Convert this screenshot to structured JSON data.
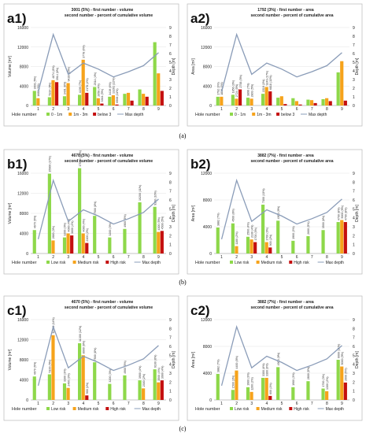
{
  "captions": [
    "(a)",
    "(b)",
    "(c)"
  ],
  "legend_entries": {
    "a": [
      {
        "label": "0 - 1m",
        "kind": "bar",
        "color": "#8ed84a"
      },
      {
        "label": "1m - 3m",
        "kind": "bar",
        "color": "#f6a31b"
      },
      {
        "label": "below 3",
        "kind": "bar",
        "color": "#c40f0f"
      },
      {
        "label": "Max depth",
        "kind": "line",
        "color": "#8a9cb8"
      }
    ],
    "risk": [
      {
        "label": "Low risk",
        "kind": "bar",
        "color": "#8ed84a"
      },
      {
        "label": "Medium risk",
        "kind": "bar",
        "color": "#f6a31b"
      },
      {
        "label": "High risk",
        "kind": "bar",
        "color": "#c40f0f"
      },
      {
        "label": "Max depth",
        "kind": "line",
        "color": "#8a9cb8"
      }
    ]
  },
  "chart_data": [
    {
      "panel": "a1)",
      "type": "bar",
      "legend_key": "a",
      "header_lines": [
        "3001 (5%) - first number - volume",
        "second number - percent of cumulative volume"
      ],
      "xlabel": "Hole number",
      "ylabel": "Volume [m³]",
      "y2label": "Depth [m]",
      "ylim": [
        0,
        16000
      ],
      "yticks": [
        0,
        4000,
        8000,
        12000,
        16000
      ],
      "y2lim": [
        0,
        9
      ],
      "y2ticks": [
        0,
        1,
        2,
        3,
        4,
        5,
        6,
        7,
        8,
        9
      ],
      "categories": [
        "1",
        "2",
        "3",
        "4",
        "5",
        "6",
        "7",
        "8",
        "9"
      ],
      "series": [
        {
          "name": "0 - 1m",
          "color": "#8ed84a",
          "values": [
            3001,
            1700,
            1900,
            2200,
            3800,
            1800,
            2400,
            3300,
            13000
          ]
        },
        {
          "name": "1m - 3m",
          "color": "#f6a31b",
          "values": [
            1500,
            5200,
            4600,
            9400,
            1500,
            2100,
            2600,
            2400,
            6600
          ]
        },
        {
          "name": "below 3",
          "color": "#c40f0f",
          "values": [
            0,
            4800,
            0,
            2600,
            400,
            200,
            1000,
            1800,
            3000
          ]
        }
      ],
      "line": {
        "name": "Max depth",
        "color": "#8a9cb8",
        "values": [
          1.6,
          8.2,
          3.6,
          4.9,
          4.2,
          3.3,
          3.9,
          4.6,
          6.1
        ]
      },
      "data_labels": [
        "3001 (5%)",
        "1688 (3%)",
        "5314 (9%)",
        "4874 (8%)",
        "3914 (6%)",
        "3401 (6%)",
        "9428 (16%)",
        "4199 (7%)",
        "3778 (6%)",
        "2178 (4%)",
        "2514 (4%)",
        "2658 (4%)",
        "3364 (5%)",
        "3419 (6%)",
        "13261 (22%)",
        "6508 (11%)"
      ]
    },
    {
      "panel": "a2)",
      "type": "bar",
      "legend_key": "a",
      "header_lines": [
        "1792 (3%) - first number - area",
        "second number - percent of cumulative area"
      ],
      "xlabel": "Hole number",
      "ylabel": "Area [m²]",
      "y2label": "Depth [m]",
      "ylim": [
        0,
        16000
      ],
      "yticks": [
        0,
        4000,
        8000,
        12000,
        16000
      ],
      "y2lim": [
        0,
        9
      ],
      "y2ticks": [
        0,
        1,
        2,
        3,
        4,
        5,
        6,
        7,
        8,
        9
      ],
      "categories": [
        "1",
        "2",
        "3",
        "4",
        "5",
        "6",
        "7",
        "8",
        "9"
      ],
      "series": [
        {
          "name": "0 - 1m",
          "color": "#8ed84a",
          "values": [
            1792,
            2200,
            1600,
            2400,
            1600,
            1500,
            1200,
            1300,
            6800
          ]
        },
        {
          "name": "1m - 3m",
          "color": "#f6a31b",
          "values": [
            1800,
            1400,
            1400,
            3800,
            1900,
            900,
            1100,
            1500,
            9100
          ]
        },
        {
          "name": "below 3",
          "color": "#c40f0f",
          "values": [
            0,
            3300,
            0,
            2900,
            300,
            200,
            500,
            900,
            1000
          ]
        }
      ],
      "line": {
        "name": "Max depth",
        "color": "#8a9cb8",
        "values": [
          1.6,
          8.2,
          3.6,
          4.9,
          4.2,
          3.3,
          3.9,
          4.6,
          6.1
        ]
      },
      "data_labels": [
        "1792 (3%)",
        "1836 (3%)",
        "1856 (3%)",
        "2724 (5%)",
        "2758 (5%)",
        "3896 (7%)",
        "2803 (5%)",
        "1519 (3%)",
        "9249 (17%)",
        "6818 (13%)"
      ]
    },
    {
      "panel": "b1)",
      "type": "bar",
      "legend_key": "risk",
      "header_lines": [
        "4670 (5%) - first number - volume",
        "second number - percent of cumulative volume"
      ],
      "xlabel": "Hole number",
      "ylabel": "Volume [m³]",
      "y2label": "Depth [m]",
      "ylim": [
        0,
        16000
      ],
      "yticks": [
        0,
        4000,
        8000,
        12000,
        16000
      ],
      "y2lim": [
        0,
        9
      ],
      "y2ticks": [
        0,
        1,
        2,
        3,
        4,
        5,
        6,
        7,
        8,
        9
      ],
      "categories": [
        "1",
        "2",
        "3",
        "4",
        "5",
        "6",
        "7",
        "8",
        "9"
      ],
      "series": [
        {
          "name": "Low risk",
          "color": "#8ed84a",
          "values": [
            4670,
            15900,
            3200,
            17000,
            7500,
            3200,
            4900,
            10200,
            9300
          ]
        },
        {
          "name": "Medium risk",
          "color": "#f6a31b",
          "values": [
            0,
            2600,
            4000,
            4000,
            0,
            0,
            0,
            0,
            4300
          ]
        },
        {
          "name": "High risk",
          "color": "#c40f0f",
          "values": [
            0,
            0,
            3600,
            2100,
            0,
            0,
            0,
            0,
            4500
          ]
        }
      ],
      "line": {
        "name": "Max depth",
        "color": "#8a9cb8",
        "values": [
          1.6,
          8.2,
          3.6,
          4.9,
          4.2,
          3.3,
          3.9,
          4.6,
          6.1
        ]
      },
      "data_labels": [
        "4670 (5%)",
        "15900 (17%)",
        "2600 (3%)",
        "3200 (3%)",
        "4000 (4%)",
        "3600 (4%)",
        "17000 (18%)",
        "4000 (4%)",
        "2100 (2%)",
        "7500 (8%)",
        "3200 (3%)",
        "4900 (5%)",
        "10200 (11%)",
        "9300 (10%)",
        "4300 (5%)",
        "4500 (5%)"
      ]
    },
    {
      "panel": "b2)",
      "type": "bar",
      "legend_key": "risk",
      "header_lines": [
        "3882 (7%) - first number - area",
        "second number - percent of cumulative area"
      ],
      "xlabel": "Hole number",
      "ylabel": "Area [m²]",
      "y2label": "Depth [m]",
      "ylim": [
        0,
        12000
      ],
      "yticks": [
        0,
        4000,
        8000,
        12000
      ],
      "y2lim": [
        0,
        9
      ],
      "y2ticks": [
        0,
        1,
        2,
        3,
        4,
        5,
        6,
        7,
        8,
        9
      ],
      "categories": [
        "1",
        "2",
        "3",
        "4",
        "5",
        "6",
        "7",
        "8",
        "9"
      ],
      "series": [
        {
          "name": "Low risk",
          "color": "#8ed84a",
          "values": [
            3882,
            4500,
            2500,
            7300,
            4900,
            1900,
            2600,
            3500,
            4700
          ]
        },
        {
          "name": "Medium risk",
          "color": "#f6a31b",
          "values": [
            0,
            1100,
            2100,
            1700,
            0,
            0,
            0,
            0,
            5000
          ]
        },
        {
          "name": "High risk",
          "color": "#c40f0f",
          "values": [
            0,
            0,
            1700,
            900,
            0,
            0,
            0,
            0,
            4700
          ]
        }
      ],
      "line": {
        "name": "Max depth",
        "color": "#8a9cb8",
        "values": [
          1.6,
          8.2,
          3.6,
          4.9,
          4.2,
          3.3,
          3.9,
          4.6,
          6.1
        ]
      },
      "data_labels": [
        "3882 (7%)",
        "4500 (8%)",
        "1100 (2%)",
        "2500 (4%)",
        "2100 (4%)",
        "1700 (3%)",
        "7300 (13%)",
        "1700 (3%)",
        "900 (2%)",
        "4900 (9%)",
        "1900 (3%)",
        "2600 (5%)",
        "3500 (6%)",
        "4700 (8%)",
        "5000 (9%)",
        "4700 (8%)"
      ]
    },
    {
      "panel": "c1)",
      "type": "bar",
      "legend_key": "risk",
      "header_lines": [
        "4670 (5%) - first number - volume",
        "second number - percent of cumulative volume"
      ],
      "xlabel": "Hole number",
      "ylabel": "Volume [m³]",
      "y2label": "Depth [m]",
      "ylim": [
        0,
        16000
      ],
      "yticks": [
        0,
        4000,
        8000,
        12000,
        16000
      ],
      "y2lim": [
        0,
        9
      ],
      "y2ticks": [
        0,
        1,
        2,
        3,
        4,
        5,
        6,
        7,
        8,
        9
      ],
      "categories": [
        "1",
        "2",
        "3",
        "4",
        "5",
        "6",
        "7",
        "8",
        "9"
      ],
      "series": [
        {
          "name": "Low risk",
          "color": "#8ed84a",
          "values": [
            4670,
            5100,
            3300,
            11300,
            7500,
            3200,
            4900,
            3900,
            6100
          ]
        },
        {
          "name": "Medium risk",
          "color": "#f6a31b",
          "values": [
            0,
            12900,
            2400,
            8900,
            0,
            0,
            0,
            2300,
            3500
          ]
        },
        {
          "name": "High risk",
          "color": "#c40f0f",
          "values": [
            0,
            0,
            0,
            900,
            0,
            0,
            0,
            0,
            3900
          ]
        }
      ],
      "line": {
        "name": "Max depth",
        "color": "#8a9cb8",
        "values": [
          1.6,
          8.2,
          3.6,
          4.9,
          4.2,
          3.3,
          3.9,
          4.6,
          6.1
        ]
      },
      "data_labels": [
        "4670 (5%)",
        "5100 (5%)",
        "12900 (14%)",
        "3300 (3%)",
        "2400 (3%)",
        "11300 (12%)",
        "8900 (9%)",
        "900 (1%)",
        "7500 (8%)",
        "3200 (3%)",
        "4900 (5%)",
        "3900 (4%)",
        "2300 (2%)",
        "6100 (6%)",
        "3500 (4%)",
        "3900 (4%)"
      ]
    },
    {
      "panel": "c2)",
      "type": "bar",
      "legend_key": "risk",
      "header_lines": [
        "3882 (7%) - first number - area",
        "second number - percent of cumulative area"
      ],
      "xlabel": "Hole number",
      "ylabel": "Area [m²]",
      "y2label": "Depth [m]",
      "ylim": [
        0,
        12000
      ],
      "yticks": [
        0,
        4000,
        8000,
        12000
      ],
      "y2lim": [
        0,
        9
      ],
      "y2ticks": [
        0,
        1,
        2,
        3,
        4,
        5,
        6,
        7,
        8,
        9
      ],
      "categories": [
        "1",
        "2",
        "3",
        "4",
        "5",
        "6",
        "7",
        "8",
        "9"
      ],
      "series": [
        {
          "name": "Low risk",
          "color": "#8ed84a",
          "values": [
            3882,
            1500,
            1900,
            3300,
            4900,
            1900,
            2800,
            1700,
            6000
          ]
        },
        {
          "name": "Medium risk",
          "color": "#f6a31b",
          "values": [
            0,
            4400,
            1200,
            3300,
            0,
            0,
            0,
            1300,
            5000
          ]
        },
        {
          "name": "High risk",
          "color": "#c40f0f",
          "values": [
            0,
            0,
            0,
            600,
            0,
            0,
            0,
            0,
            2600
          ]
        }
      ],
      "line": {
        "name": "Max depth",
        "color": "#8a9cb8",
        "values": [
          1.6,
          8.2,
          3.6,
          4.9,
          4.2,
          3.3,
          3.9,
          4.6,
          6.1
        ]
      },
      "data_labels": [
        "3882 (7%)",
        "1500 (3%)",
        "4400 (8%)",
        "1900 (3%)",
        "1200 (2%)",
        "3300 (6%)",
        "3300 (6%)",
        "600 (1%)",
        "4900 (9%)",
        "1900 (3%)",
        "2800 (5%)",
        "1700 (3%)",
        "1300 (2%)",
        "6000 (11%)",
        "5000 (9%)",
        "2600 (5%)"
      ]
    }
  ]
}
